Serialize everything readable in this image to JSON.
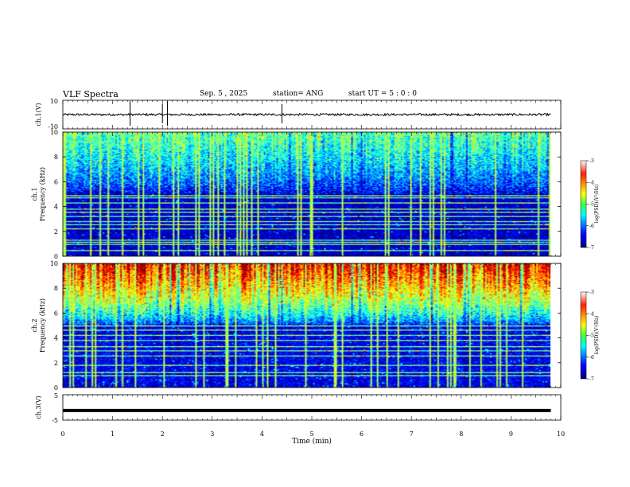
{
  "header": {
    "title": "VLF Spectra",
    "date": "Sep. 5 , 2025",
    "station": "station= ANG",
    "start_ut": "start UT =  5 : 0 : 0"
  },
  "chart_data": [
    {
      "type": "line",
      "panel": "ch1-waveform",
      "ylabel": "ch.1(V)",
      "ylim": [
        -10,
        10
      ],
      "yticks": [
        "10",
        "-10"
      ],
      "xlim": [
        0,
        10
      ],
      "trace_level": 0,
      "trace_amplitude": 1.5,
      "trace_end": 9.8,
      "spikes": [
        1.35,
        2.0,
        2.1,
        4.4
      ]
    },
    {
      "type": "heatmap",
      "panel": "ch1-spectrogram",
      "ylabel_lines": [
        "ch.1",
        "Frequency (kHz)"
      ],
      "ylim": [
        0,
        10
      ],
      "yticks": [
        "0",
        "2",
        "4",
        "6",
        "8",
        "10"
      ],
      "xlim": [
        0,
        9.8
      ],
      "colorbar": {
        "label": "log(PSD)(V²/Hz)",
        "range": [
          -7,
          -3
        ],
        "ticks": [
          "-3",
          "-4",
          "-5",
          "-6",
          "-7"
        ]
      },
      "intensity_top": 0.52,
      "intensity_bottom": 0.08,
      "tone_lines_khz": [
        0.4,
        0.9,
        1.1,
        1.3,
        2.2,
        2.5,
        2.8,
        3.2,
        3.5,
        3.8,
        4.3,
        4.7,
        4.9
      ]
    },
    {
      "type": "heatmap",
      "panel": "ch2-spectrogram",
      "ylabel_lines": [
        "ch.2",
        "Frequency (kHz)"
      ],
      "ylim": [
        0,
        10
      ],
      "yticks": [
        "0",
        "2",
        "4",
        "6",
        "8",
        "10"
      ],
      "xlim": [
        0,
        9.8
      ],
      "colorbar": {
        "label": "log(PSD)(V²/Hz)",
        "range": [
          -7,
          -3
        ],
        "ticks": [
          "-3",
          "-4",
          "-5",
          "-6",
          "-7"
        ]
      },
      "intensity_top": 0.95,
      "intensity_bottom": 0.12,
      "tone_lines_khz": [
        0.9,
        1.2,
        1.8,
        2.5,
        2.9,
        3.3,
        3.8,
        4.2,
        4.6,
        5.0
      ]
    },
    {
      "type": "line",
      "panel": "ch3-waveform",
      "ylabel": "ch.3(V)",
      "ylim": [
        -5,
        5
      ],
      "yticks": [
        "5",
        "-5"
      ],
      "xlim": [
        0,
        10
      ],
      "trace_level": -1.2,
      "trace_end": 9.8
    }
  ],
  "x_axis": {
    "label": "Time (min)",
    "ticks": [
      "0",
      "1",
      "2",
      "3",
      "4",
      "5",
      "6",
      "7",
      "8",
      "9",
      "10"
    ]
  },
  "colors": {
    "jet": [
      "#00008f",
      "#0000ff",
      "#00ffff",
      "#ffff00",
      "#ff0000"
    ]
  }
}
